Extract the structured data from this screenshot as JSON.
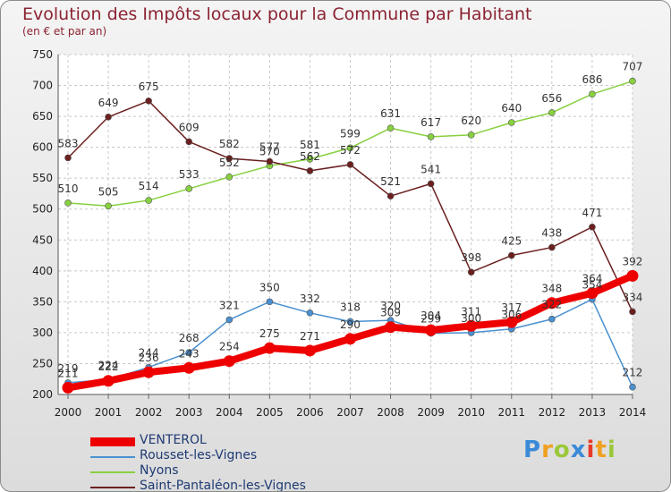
{
  "chart_data": {
    "type": "line",
    "title": "Evolution des Impôts locaux pour la Commune par Habitant",
    "subtitle": "(en € et par an)",
    "categories": [
      "2000",
      "2001",
      "2002",
      "2003",
      "2004",
      "2005",
      "2006",
      "2007",
      "2008",
      "2009",
      "2010",
      "2011",
      "2012",
      "2013",
      "2014"
    ],
    "ylim": [
      200,
      750
    ],
    "yticks": [
      200,
      250,
      300,
      350,
      400,
      450,
      500,
      550,
      600,
      650,
      700,
      750
    ],
    "grid": true,
    "legend_position": "bottom-left",
    "series": [
      {
        "name": "VENTEROL",
        "color": "#ee0000",
        "emphasis": true,
        "values": [
          211,
          222,
          236,
          243,
          254,
          275,
          271,
          290,
          309,
          304,
          311,
          317,
          348,
          364,
          392
        ]
      },
      {
        "name": "Rousset-les-Vignes",
        "color": "#4a90d0",
        "emphasis": false,
        "values": [
          219,
          224,
          244,
          268,
          321,
          350,
          332,
          318,
          320,
          299,
          300,
          306,
          322,
          354,
          212
        ]
      },
      {
        "name": "Nyons",
        "color": "#88d040",
        "emphasis": false,
        "values": [
          510,
          505,
          514,
          533,
          552,
          570,
          581,
          599,
          631,
          617,
          620,
          640,
          656,
          686,
          707
        ]
      },
      {
        "name": "Saint-Pantaléon-les-Vignes",
        "color": "#6b1f1f",
        "emphasis": false,
        "values": [
          583,
          649,
          675,
          609,
          582,
          577,
          562,
          572,
          521,
          541,
          398,
          425,
          438,
          471,
          334
        ]
      }
    ]
  },
  "brand": {
    "letters": [
      "P",
      "r",
      "o",
      "x",
      "i",
      "t",
      "i"
    ],
    "colors": [
      "#3a8ad8",
      "#f0a020",
      "#9ac83a",
      "#3a8ad8",
      "#e83a2a",
      "#f0a020",
      "#9ac83a"
    ]
  }
}
